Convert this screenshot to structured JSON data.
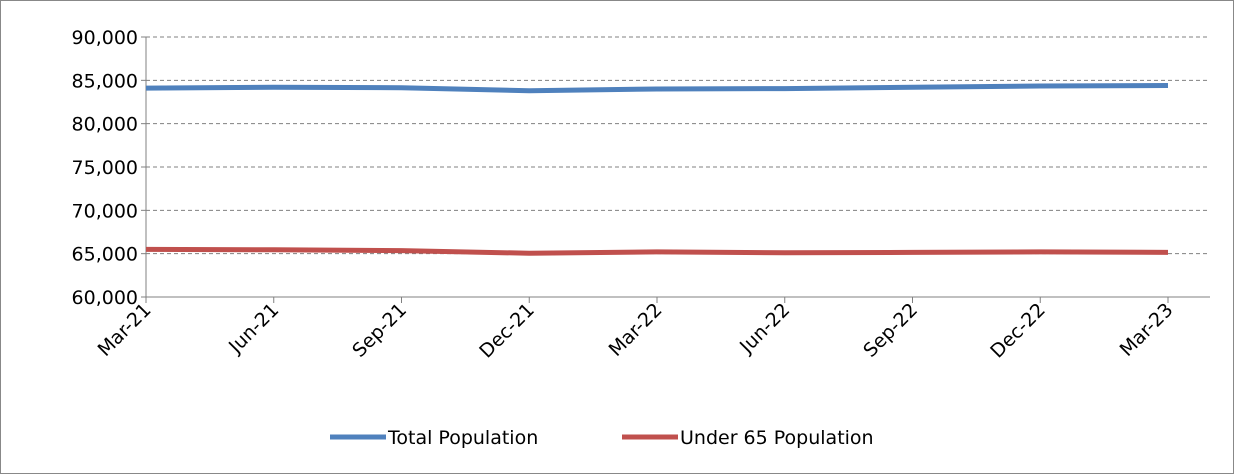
{
  "chart_data": {
    "type": "line",
    "categories": [
      "Mar-21",
      "Jun-21",
      "Sep-21",
      "Dec-21",
      "Mar-22",
      "Jun-22",
      "Sep-22",
      "Dec-22",
      "Mar-23"
    ],
    "series": [
      {
        "name": "Total Population",
        "color": "#4f81bd",
        "values": [
          84100,
          84200,
          84150,
          83800,
          84000,
          84050,
          84200,
          84350,
          84400
        ]
      },
      {
        "name": "Under 65 Population",
        "color": "#c0504d",
        "values": [
          65500,
          65450,
          65350,
          65050,
          65200,
          65100,
          65150,
          65200,
          65150
        ]
      }
    ],
    "ylim": [
      60000,
      90000
    ],
    "yticks": [
      {
        "value": 60000,
        "label": "60,000"
      },
      {
        "value": 65000,
        "label": "65,000"
      },
      {
        "value": 70000,
        "label": "70,000"
      },
      {
        "value": 75000,
        "label": "75,000"
      },
      {
        "value": 80000,
        "label": "80,000"
      },
      {
        "value": 85000,
        "label": "85,000"
      },
      {
        "value": 90000,
        "label": "90,000"
      }
    ],
    "grid": true,
    "legend": "bottom"
  }
}
